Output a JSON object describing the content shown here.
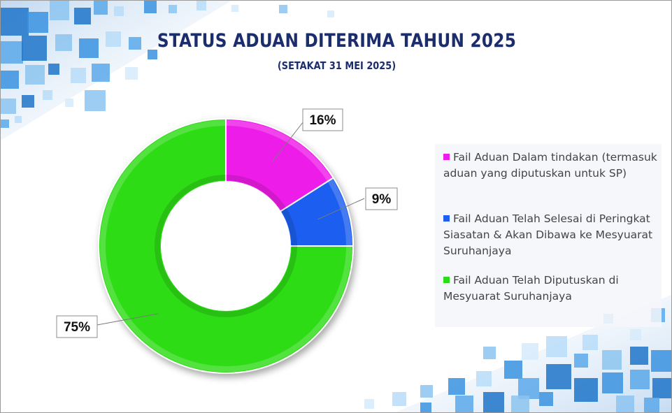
{
  "title": "STATUS ADUAN DITERIMA TAHUN 2025",
  "subtitle": "(SETAKAT 31 MEI 2025)",
  "colors": {
    "title": "#1c2d6b",
    "magenta": "#ee1ce8",
    "blue": "#1e5ef0",
    "green": "#2ddc19"
  },
  "chart_data": {
    "type": "pie",
    "variant": "doughnut",
    "title": "STATUS ADUAN DITERIMA TAHUN 2025",
    "subtitle": "(SETAKAT 31 MEI 2025)",
    "legend_position": "right",
    "categories": [
      "Fail Aduan Dalam tindakan (termasuk aduan yang diputuskan untuk SP)",
      "Fail Aduan Telah Selesai di Peringkat Siasatan & Akan Dibawa ke Mesyuarat Suruhanjaya",
      "Fail Aduan Telah Diputuskan di Mesyuarat Suruhanjaya"
    ],
    "values": [
      16,
      9,
      75
    ],
    "labels": [
      "16%",
      "9%",
      "75%"
    ],
    "colors": [
      "#ee1ce8",
      "#1e5ef0",
      "#2ddc19"
    ]
  },
  "legend": {
    "items": [
      {
        "label": "Fail Aduan Dalam tindakan (termasuk aduan yang diputuskan untuk SP)",
        "color": "#ee1ce8"
      },
      {
        "label": "Fail Aduan Telah Selesai di Peringkat Siasatan & Akan Dibawa ke Mesyuarat Suruhanjaya",
        "color": "#1e5ef0"
      },
      {
        "label": "Fail Aduan Telah Diputuskan di Mesyuarat Suruhanjaya",
        "color": "#2ddc19"
      }
    ]
  }
}
